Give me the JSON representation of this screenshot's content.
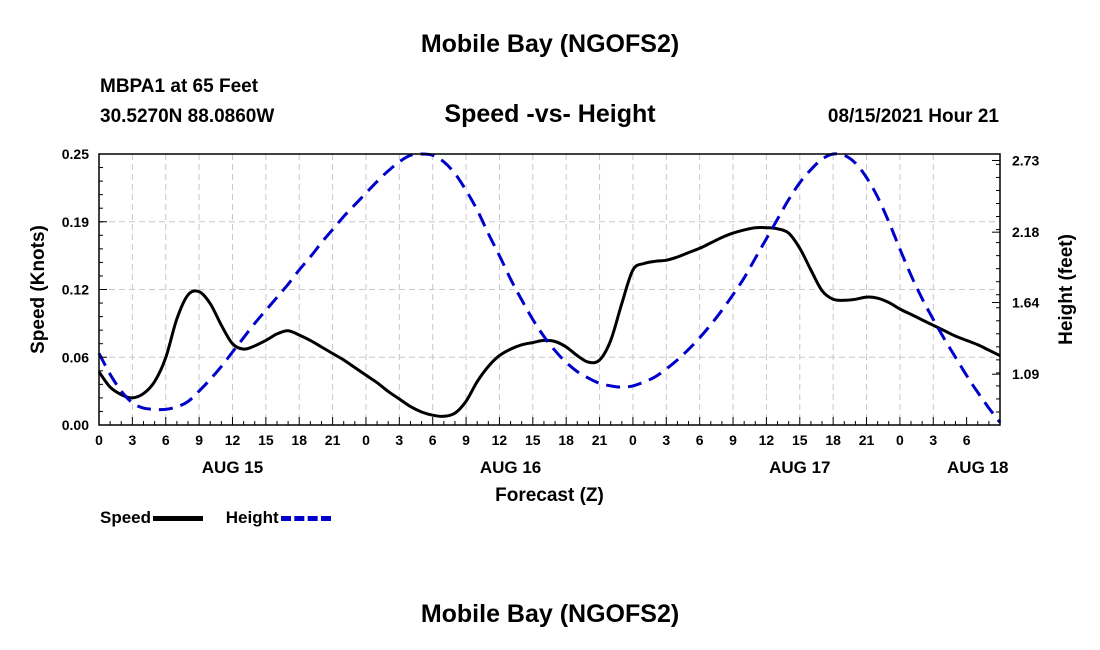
{
  "header": {
    "title": "Mobile Bay (NGOFS2)",
    "station": "MBPA1 at 65 Feet",
    "coords": "30.5270N  88.0860W",
    "subtitle": "Speed -vs- Height",
    "datetime": "08/15/2021 Hour 21"
  },
  "footer": {
    "title": "Mobile Bay (NGOFS2)"
  },
  "legend": {
    "speed": "Speed",
    "height": "Height"
  },
  "colors": {
    "speed": "#000000",
    "height": "#0000cc",
    "grid": "#c8c8c8"
  },
  "chart_data": {
    "type": "line",
    "xlabel": "Forecast (Z)",
    "ylabel_left": "Speed (Knots)",
    "ylabel_right": "Height (feet)",
    "x_range_hours": [
      0,
      81
    ],
    "y_left_range": [
      0,
      0.25
    ],
    "y_right_range": [
      0.7,
      2.78
    ],
    "x_tick_labels": [
      "0",
      "3",
      "6",
      "9",
      "12",
      "15",
      "18",
      "21",
      "0",
      "3",
      "6",
      "9",
      "12",
      "15",
      "18",
      "21",
      "0",
      "3",
      "6",
      "9",
      "12",
      "15",
      "18",
      "21",
      "0",
      "3",
      "6"
    ],
    "day_labels": [
      {
        "label": "AUG 15",
        "hour": 12
      },
      {
        "label": "AUG 16",
        "hour": 37
      },
      {
        "label": "AUG 17",
        "hour": 63
      },
      {
        "label": "AUG 18",
        "hour": 79
      }
    ],
    "y_left_ticks": [
      "0.00",
      "0.06",
      "0.12",
      "0.19",
      "0.25"
    ],
    "y_right_ticks": [
      {
        "label": "1.09",
        "value": 1.09
      },
      {
        "label": "1.64",
        "value": 1.64
      },
      {
        "label": "2.18",
        "value": 2.18
      },
      {
        "label": "2.73",
        "value": 2.73
      }
    ],
    "grid": true,
    "legend_position": "bottom-left",
    "series": [
      {
        "name": "Speed",
        "axis": "left",
        "style": "solid",
        "points": [
          [
            0,
            0.049
          ],
          [
            1,
            0.035
          ],
          [
            2,
            0.028
          ],
          [
            3,
            0.025
          ],
          [
            4,
            0.029
          ],
          [
            5,
            0.04
          ],
          [
            6,
            0.062
          ],
          [
            7,
            0.098
          ],
          [
            8,
            0.12
          ],
          [
            9,
            0.123
          ],
          [
            10,
            0.112
          ],
          [
            11,
            0.092
          ],
          [
            12,
            0.075
          ],
          [
            13,
            0.07
          ],
          [
            14,
            0.073
          ],
          [
            15,
            0.078
          ],
          [
            16,
            0.084
          ],
          [
            17,
            0.087
          ],
          [
            18,
            0.083
          ],
          [
            19,
            0.078
          ],
          [
            20,
            0.072
          ],
          [
            21,
            0.066
          ],
          [
            22,
            0.06
          ],
          [
            23,
            0.053
          ],
          [
            24,
            0.046
          ],
          [
            25,
            0.039
          ],
          [
            26,
            0.031
          ],
          [
            27,
            0.024
          ],
          [
            28,
            0.017
          ],
          [
            29,
            0.012
          ],
          [
            30,
            0.009
          ],
          [
            31,
            0.008
          ],
          [
            32,
            0.011
          ],
          [
            33,
            0.022
          ],
          [
            34,
            0.04
          ],
          [
            35,
            0.054
          ],
          [
            36,
            0.064
          ],
          [
            37,
            0.07
          ],
          [
            38,
            0.074
          ],
          [
            39,
            0.076
          ],
          [
            40,
            0.078
          ],
          [
            41,
            0.077
          ],
          [
            42,
            0.072
          ],
          [
            43,
            0.064
          ],
          [
            44,
            0.058
          ],
          [
            45,
            0.06
          ],
          [
            46,
            0.078
          ],
          [
            47,
            0.112
          ],
          [
            48,
            0.143
          ],
          [
            49,
            0.149
          ],
          [
            50,
            0.151
          ],
          [
            51,
            0.152
          ],
          [
            52,
            0.155
          ],
          [
            53,
            0.159
          ],
          [
            54,
            0.163
          ],
          [
            55,
            0.168
          ],
          [
            56,
            0.173
          ],
          [
            57,
            0.177
          ],
          [
            58,
            0.18
          ],
          [
            59,
            0.182
          ],
          [
            60,
            0.182
          ],
          [
            61,
            0.181
          ],
          [
            62,
            0.177
          ],
          [
            63,
            0.163
          ],
          [
            64,
            0.143
          ],
          [
            65,
            0.124
          ],
          [
            66,
            0.116
          ],
          [
            67,
            0.115
          ],
          [
            68,
            0.116
          ],
          [
            69,
            0.118
          ],
          [
            70,
            0.117
          ],
          [
            71,
            0.113
          ],
          [
            72,
            0.107
          ],
          [
            73,
            0.102
          ],
          [
            74,
            0.097
          ],
          [
            75,
            0.092
          ],
          [
            76,
            0.087
          ],
          [
            77,
            0.082
          ],
          [
            78,
            0.078
          ],
          [
            79,
            0.074
          ],
          [
            80,
            0.069
          ],
          [
            81,
            0.064
          ]
        ]
      },
      {
        "name": "Height",
        "axis": "right",
        "style": "dashed",
        "points": [
          [
            0,
            1.25
          ],
          [
            1,
            1.09
          ],
          [
            2,
            0.96
          ],
          [
            3,
            0.87
          ],
          [
            4,
            0.83
          ],
          [
            5,
            0.82
          ],
          [
            6,
            0.82
          ],
          [
            7,
            0.84
          ],
          [
            8,
            0.88
          ],
          [
            9,
            0.96
          ],
          [
            10,
            1.05
          ],
          [
            11,
            1.15
          ],
          [
            12,
            1.26
          ],
          [
            13,
            1.37
          ],
          [
            14,
            1.48
          ],
          [
            15,
            1.58
          ],
          [
            16,
            1.68
          ],
          [
            17,
            1.78
          ],
          [
            18,
            1.89
          ],
          [
            19,
            1.99
          ],
          [
            20,
            2.1
          ],
          [
            21,
            2.2
          ],
          [
            22,
            2.3
          ],
          [
            23,
            2.39
          ],
          [
            24,
            2.48
          ],
          [
            25,
            2.57
          ],
          [
            26,
            2.65
          ],
          [
            27,
            2.72
          ],
          [
            28,
            2.77
          ],
          [
            29,
            2.78
          ],
          [
            30,
            2.77
          ],
          [
            31,
            2.72
          ],
          [
            32,
            2.63
          ],
          [
            33,
            2.5
          ],
          [
            34,
            2.35
          ],
          [
            35,
            2.17
          ],
          [
            36,
            2.0
          ],
          [
            37,
            1.82
          ],
          [
            38,
            1.66
          ],
          [
            39,
            1.51
          ],
          [
            40,
            1.38
          ],
          [
            41,
            1.27
          ],
          [
            42,
            1.18
          ],
          [
            43,
            1.11
          ],
          [
            44,
            1.06
          ],
          [
            45,
            1.02
          ],
          [
            46,
            1.0
          ],
          [
            47,
            0.99
          ],
          [
            48,
            1.0
          ],
          [
            49,
            1.03
          ],
          [
            50,
            1.07
          ],
          [
            51,
            1.13
          ],
          [
            52,
            1.2
          ],
          [
            53,
            1.28
          ],
          [
            54,
            1.37
          ],
          [
            55,
            1.47
          ],
          [
            56,
            1.58
          ],
          [
            57,
            1.7
          ],
          [
            58,
            1.83
          ],
          [
            59,
            1.98
          ],
          [
            60,
            2.13
          ],
          [
            61,
            2.28
          ],
          [
            62,
            2.43
          ],
          [
            63,
            2.56
          ],
          [
            64,
            2.66
          ],
          [
            65,
            2.74
          ],
          [
            66,
            2.78
          ],
          [
            67,
            2.77
          ],
          [
            68,
            2.71
          ],
          [
            69,
            2.6
          ],
          [
            70,
            2.45
          ],
          [
            71,
            2.26
          ],
          [
            72,
            2.05
          ],
          [
            73,
            1.85
          ],
          [
            74,
            1.67
          ],
          [
            75,
            1.51
          ],
          [
            76,
            1.36
          ],
          [
            77,
            1.22
          ],
          [
            78,
            1.08
          ],
          [
            79,
            0.95
          ],
          [
            80,
            0.83
          ],
          [
            81,
            0.72
          ]
        ]
      }
    ]
  }
}
